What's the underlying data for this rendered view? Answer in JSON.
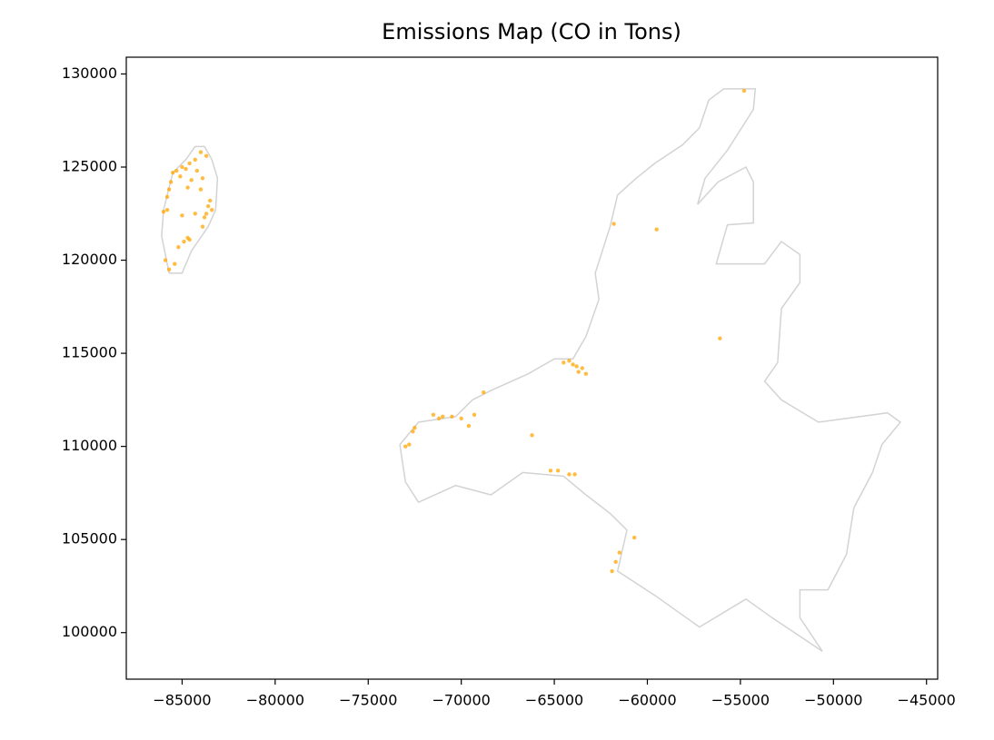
{
  "chart_data": {
    "type": "scatter",
    "title": "Emissions Map (CO in Tons)",
    "xlim": [
      -88000,
      -44400
    ],
    "ylim": [
      97500,
      130900
    ],
    "xticks": [
      {
        "value": -85000,
        "label": "−85000"
      },
      {
        "value": -80000,
        "label": "−80000"
      },
      {
        "value": -75000,
        "label": "−75000"
      },
      {
        "value": -70000,
        "label": "−70000"
      },
      {
        "value": -65000,
        "label": "−65000"
      },
      {
        "value": -60000,
        "label": "−60000"
      },
      {
        "value": -55000,
        "label": "−55000"
      },
      {
        "value": -50000,
        "label": "−50000"
      },
      {
        "value": -45000,
        "label": "−45000"
      }
    ],
    "yticks": [
      100000,
      105000,
      110000,
      115000,
      120000,
      125000,
      130000
    ],
    "grid": false,
    "outlines": [
      {
        "color": "#d3d3d3",
        "x": [
          -55900,
          -54200,
          -54300,
          -55700,
          -56900,
          -57300,
          -56200,
          -54700,
          -54300,
          -54300,
          -55700,
          -56300,
          -53700,
          -52800,
          -51800,
          -51800,
          -52800,
          -53000,
          -53700,
          -52800,
          -50800,
          -47100,
          -46400,
          -47400,
          -47900,
          -48900,
          -49300,
          -50300,
          -51800,
          -51800,
          -50600,
          -51800,
          -53300,
          -54700,
          -57200,
          -59600,
          -61600,
          -61100,
          -62000,
          -63300,
          -64500,
          -66700,
          -68400,
          -70300,
          -72300,
          -73000,
          -73300,
          -72300,
          -70300,
          -69400,
          -68400,
          -66400,
          -65000,
          -64000,
          -63300,
          -62600,
          -62800,
          -62000,
          -61600,
          -60600,
          -59600,
          -58100,
          -57200,
          -56700,
          -55900
        ],
        "y": [
          129200,
          129200,
          128100,
          125900,
          124400,
          123000,
          124200,
          125000,
          124200,
          122000,
          121900,
          119800,
          119800,
          121000,
          120300,
          118800,
          117400,
          114500,
          113500,
          112500,
          111300,
          111800,
          111300,
          110100,
          108600,
          106700,
          104200,
          102300,
          102300,
          100800,
          99000,
          99800,
          100800,
          101800,
          100300,
          102000,
          103300,
          105500,
          106400,
          107400,
          108400,
          108600,
          107400,
          107900,
          107000,
          108100,
          110100,
          111300,
          111600,
          112500,
          113000,
          113900,
          114700,
          114700,
          115900,
          117900,
          119300,
          121800,
          123500,
          124400,
          125200,
          126200,
          127100,
          128600,
          129200
        ]
      },
      {
        "color": "#d3d3d3",
        "x": [
          -85700,
          -86100,
          -86000,
          -85500,
          -84800,
          -84300,
          -83800,
          -83400,
          -83100,
          -83200,
          -83600,
          -84500,
          -85000,
          -85700
        ],
        "y": [
          119300,
          121300,
          122700,
          124700,
          125400,
          126100,
          126100,
          125400,
          124400,
          122700,
          121800,
          120500,
          119300,
          119300
        ]
      }
    ],
    "points": {
      "color": "#ffa500",
      "x": [
        -84000,
        -83700,
        -84300,
        -84600,
        -85000,
        -85300,
        -85500,
        -84800,
        -84200,
        -83900,
        -84500,
        -85100,
        -85600,
        -85700,
        -85800,
        -84700,
        -84000,
        -83500,
        -83600,
        -83700,
        -83400,
        -83800,
        -84300,
        -85000,
        -85800,
        -86000,
        -84700,
        -84900,
        -85200,
        -85400,
        -85700,
        -85900,
        -84600,
        -83900,
        -54800,
        -61800,
        -59500,
        -56100,
        -64200,
        -64000,
        -63800,
        -63500,
        -63300,
        -63700,
        -64500,
        -68800,
        -69300,
        -69600,
        -70000,
        -70500,
        -71000,
        -71500,
        -71200,
        -72500,
        -72600,
        -72800,
        -73000,
        -66200,
        -65200,
        -64800,
        -64200,
        -63900,
        -60700,
        -61500,
        -61700,
        -61900
      ],
      "y": [
        125800,
        125600,
        125400,
        125200,
        125000,
        124800,
        124700,
        124900,
        124800,
        124400,
        124300,
        124500,
        124200,
        123800,
        123400,
        123900,
        123800,
        123200,
        122900,
        122500,
        122700,
        122300,
        122500,
        122400,
        122700,
        122600,
        121200,
        121000,
        120700,
        119800,
        119500,
        120000,
        121100,
        121800,
        129100,
        121950,
        121650,
        115800,
        114600,
        114400,
        114300,
        114200,
        113900,
        114000,
        114500,
        112900,
        111700,
        111100,
        111500,
        111600,
        111600,
        111700,
        111500,
        111000,
        110800,
        110100,
        110000,
        110600,
        108700,
        108700,
        108500,
        108500,
        105100,
        104300,
        103800,
        103300
      ]
    }
  }
}
